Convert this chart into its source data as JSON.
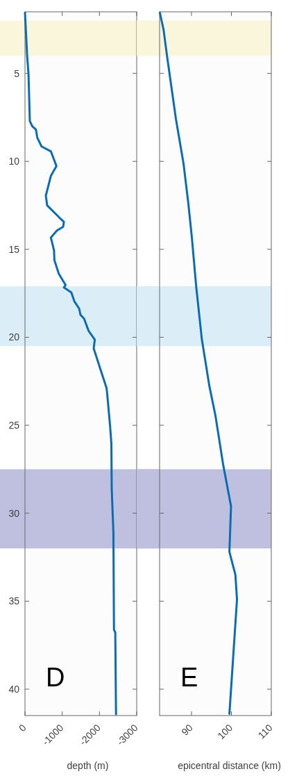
{
  "chart_data": [
    {
      "type": "line",
      "xlabel": "depth (m)",
      "xlim": [
        0,
        -3000
      ],
      "xticks": [
        0,
        -1000,
        -2000,
        -3000
      ],
      "ylim": [
        41.5,
        1.5
      ],
      "yticks": [
        5,
        10,
        15,
        20,
        25,
        30,
        35,
        40
      ],
      "annotations": [
        "D"
      ],
      "bands": [
        {
          "axis": "y",
          "from": 2,
          "to": 4,
          "color": "#faf6dc"
        },
        {
          "axis": "y",
          "from": 17.1,
          "to": 20.5,
          "color": "#dbeef8"
        },
        {
          "axis": "y",
          "from": 27.5,
          "to": 32,
          "color": "#bfc0e0"
        }
      ],
      "series": [
        {
          "color": "#0a6cb5",
          "x": [
            0,
            -60,
            -95,
            -130,
            -195,
            -295,
            -330,
            -445,
            -695,
            -845,
            -695,
            -560,
            -595,
            -925,
            -1045,
            -1025,
            -860,
            -695,
            -780,
            -790,
            -910,
            -1090,
            -1045,
            -1245,
            -1325,
            -1455,
            -1490,
            -1585,
            -1710,
            -1875,
            -1845,
            -2070,
            -2190,
            -2205,
            -2285,
            -2320,
            -2330,
            -2375,
            -2390,
            -2425,
            -2445
          ],
          "values": [
            1.55,
            4.07,
            5.05,
            7.7,
            8.0,
            8.2,
            8.65,
            9.15,
            9.43,
            10.27,
            10.83,
            11.95,
            12.5,
            13.2,
            13.44,
            13.72,
            13.93,
            14.33,
            15.06,
            15.62,
            16.4,
            17.03,
            17.17,
            17.45,
            17.95,
            18.37,
            18.72,
            18.93,
            19.64,
            20.13,
            20.63,
            22.1,
            22.88,
            23.15,
            25.03,
            26.04,
            28.64,
            31.13,
            36.63,
            36.77,
            41.43
          ]
        }
      ]
    },
    {
      "type": "line",
      "xlabel": "epicentral distance (km)",
      "xlim": [
        82,
        110
      ],
      "xticks": [
        90,
        100,
        110
      ],
      "ylim": [
        41.5,
        1.5
      ],
      "yticks": [
        5,
        10,
        15,
        20,
        25,
        30,
        35,
        40
      ],
      "tick_labels": "x",
      "annotations": [
        "E"
      ],
      "bands": [
        {
          "axis": "y",
          "from": 2,
          "to": 4,
          "color": "#faf6dc"
        },
        {
          "axis": "y",
          "from": 17.1,
          "to": 20.5,
          "color": "#dbeef8"
        },
        {
          "axis": "y",
          "from": 27.5,
          "to": 32,
          "color": "#bfc0e0"
        }
      ],
      "series": [
        {
          "color": "#0a6cb5",
          "x": [
            82.07,
            83.0,
            83.9,
            86.1,
            88.0,
            89.2,
            90.1,
            91.2,
            92.6,
            94.5,
            96.0,
            97.9,
            99.9,
            99.5,
            101.0,
            101.4,
            99.5
          ],
          "values": [
            1.55,
            2.52,
            4.07,
            7.6,
            10.13,
            12.38,
            14.36,
            17.17,
            20.13,
            22.8,
            24.45,
            27.2,
            29.6,
            32.2,
            33.5,
            34.9,
            41.4
          ]
        }
      ]
    }
  ]
}
